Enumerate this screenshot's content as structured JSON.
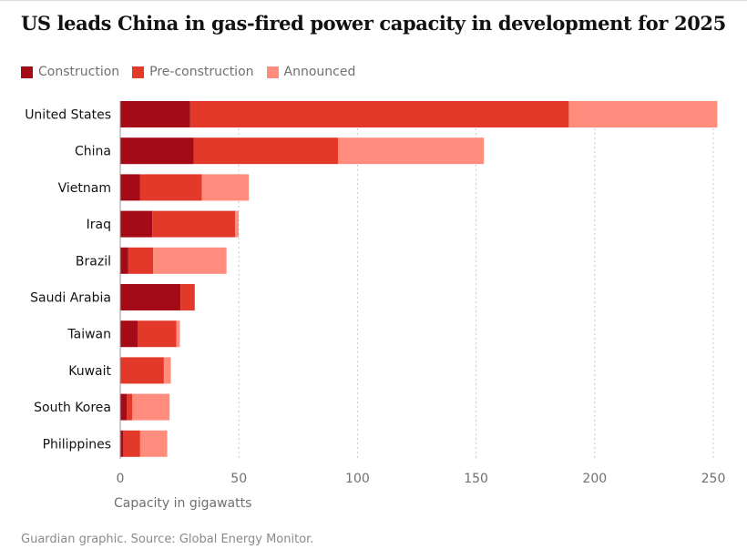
{
  "chart_data": {
    "type": "bar",
    "orientation": "horizontal",
    "stacked": true,
    "title": "US leads China in gas-fired power capacity in development for 2025",
    "xlabel": "Capacity in gigawatts",
    "ylabel": "",
    "xlim": [
      0,
      250
    ],
    "xticks": [
      0,
      50,
      100,
      150,
      200,
      250
    ],
    "grid": "vertical dotted",
    "legend_position": "top-left",
    "categories": [
      "United States",
      "China",
      "Vietnam",
      "Iraq",
      "Brazil",
      "Saudi Arabia",
      "Taiwan",
      "Kuwait",
      "South Korea",
      "Philippines"
    ],
    "series": [
      {
        "name": "Construction",
        "color": "#a50b16",
        "values": [
          29.5,
          30.9,
          8.4,
          13.5,
          3.4,
          25.4,
          7.3,
          0,
          2.7,
          1.3
        ]
      },
      {
        "name": "Pre-construction",
        "color": "#e2392a",
        "values": [
          159.6,
          60.9,
          26.0,
          35.0,
          10.5,
          6.0,
          16.4,
          18.4,
          2.4,
          7.1
        ]
      },
      {
        "name": "Announced",
        "color": "#ff8c7c",
        "values": [
          62.6,
          61.5,
          19.8,
          1.4,
          30.9,
          0,
          1.4,
          2.9,
          15.7,
          11.4
        ]
      }
    ],
    "source": "Guardian graphic. Source: Global Energy Monitor."
  }
}
